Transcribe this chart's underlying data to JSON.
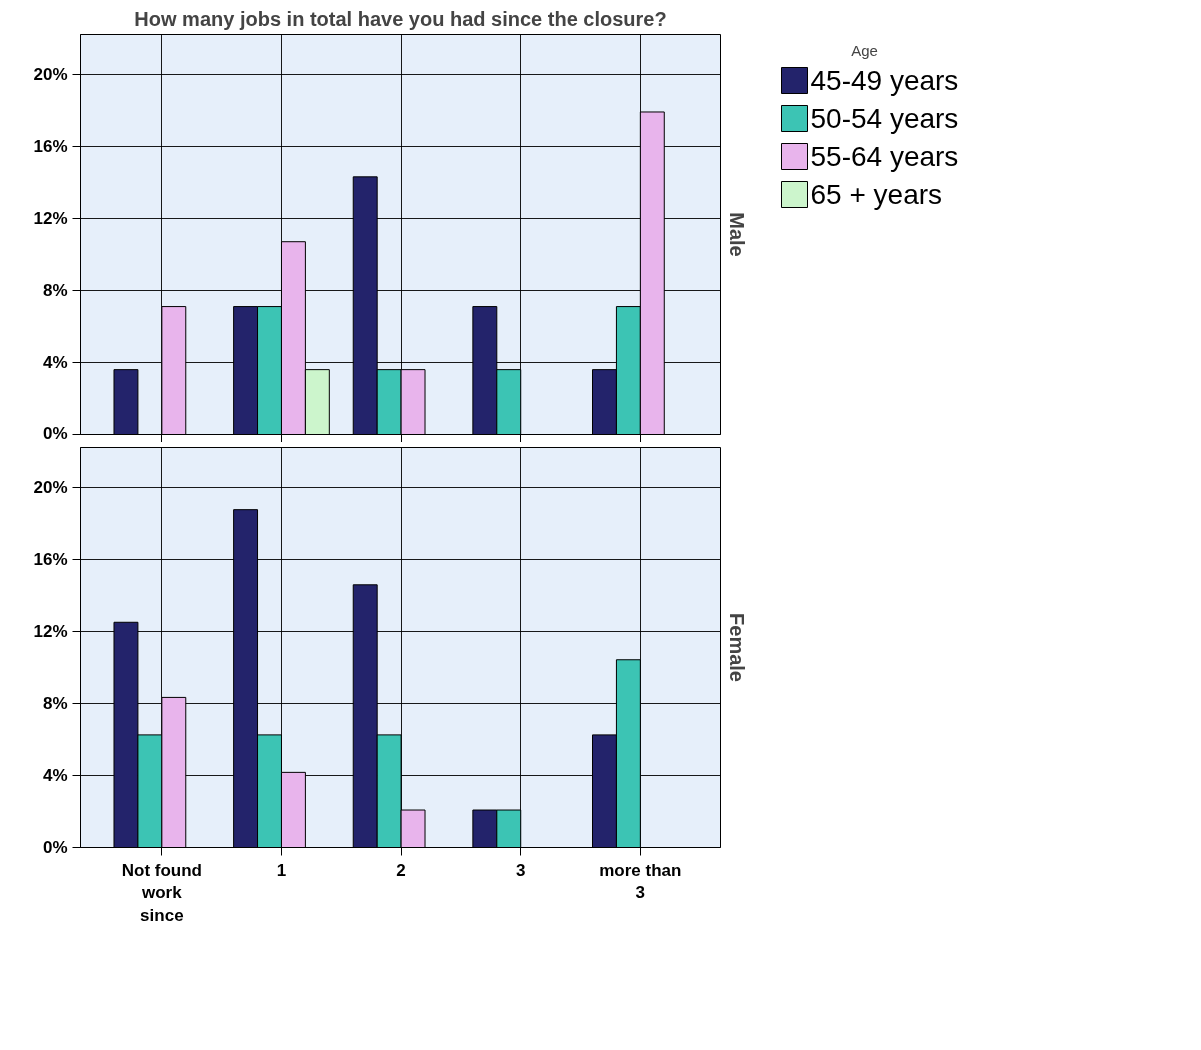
{
  "chart_data": [
    {
      "type": "bar",
      "title": "How many jobs in total have you had since the closure?",
      "y2label": "Male",
      "legend_title": "Age",
      "legend": "top right",
      "grid": true,
      "tick_labels": "y",
      "categories": [
        "Not found work since",
        "1",
        "2",
        "3",
        "more than 3"
      ],
      "ylim": [
        0,
        22.2
      ],
      "yticks": [
        {
          "value": 0,
          "label": "0%"
        },
        {
          "value": 4,
          "label": "4%"
        },
        {
          "value": 8,
          "label": "8%"
        },
        {
          "value": 12,
          "label": "12%"
        },
        {
          "value": 16,
          "label": "16%"
        },
        {
          "value": 20,
          "label": "20%"
        }
      ],
      "series": [
        {
          "name": "45-49 years",
          "color": "#23236b",
          "values": [
            3.6,
            7.1,
            14.3,
            7.1,
            3.6
          ]
        },
        {
          "name": "50-54 years",
          "color": "#3cc4b4",
          "values": [
            0,
            7.1,
            3.6,
            3.6,
            7.1
          ]
        },
        {
          "name": "55-64 years",
          "color": "#e8b4ec",
          "values": [
            7.1,
            10.7,
            3.6,
            0,
            17.9
          ]
        },
        {
          "name": "65 + years",
          "color": "#ccf5cc",
          "values": [
            0,
            3.6,
            0,
            0,
            0
          ]
        }
      ]
    },
    {
      "type": "bar",
      "y2label": "Female",
      "grid": true,
      "categories": [
        "Not found work since",
        "1",
        "2",
        "3",
        "more than 3"
      ],
      "ylim": [
        0,
        22.2
      ],
      "yticks": [
        {
          "value": 0,
          "label": "0%"
        },
        {
          "value": 4,
          "label": "4%"
        },
        {
          "value": 8,
          "label": "8%"
        },
        {
          "value": 12,
          "label": "12%"
        },
        {
          "value": 16,
          "label": "16%"
        },
        {
          "value": 20,
          "label": "20%"
        }
      ],
      "series": [
        {
          "color": "#23236b",
          "values": [
            12.5,
            18.75,
            14.58,
            2.08,
            6.25
          ]
        },
        {
          "color": "#3cc4b4",
          "values": [
            6.25,
            6.25,
            6.25,
            2.08,
            10.42
          ]
        },
        {
          "color": "#e8b4ec",
          "values": [
            8.33,
            4.17,
            2.08,
            null,
            null
          ]
        },
        {
          "color": "#ccf5cc",
          "values": [
            null,
            null,
            null,
            null,
            null
          ]
        }
      ]
    }
  ]
}
